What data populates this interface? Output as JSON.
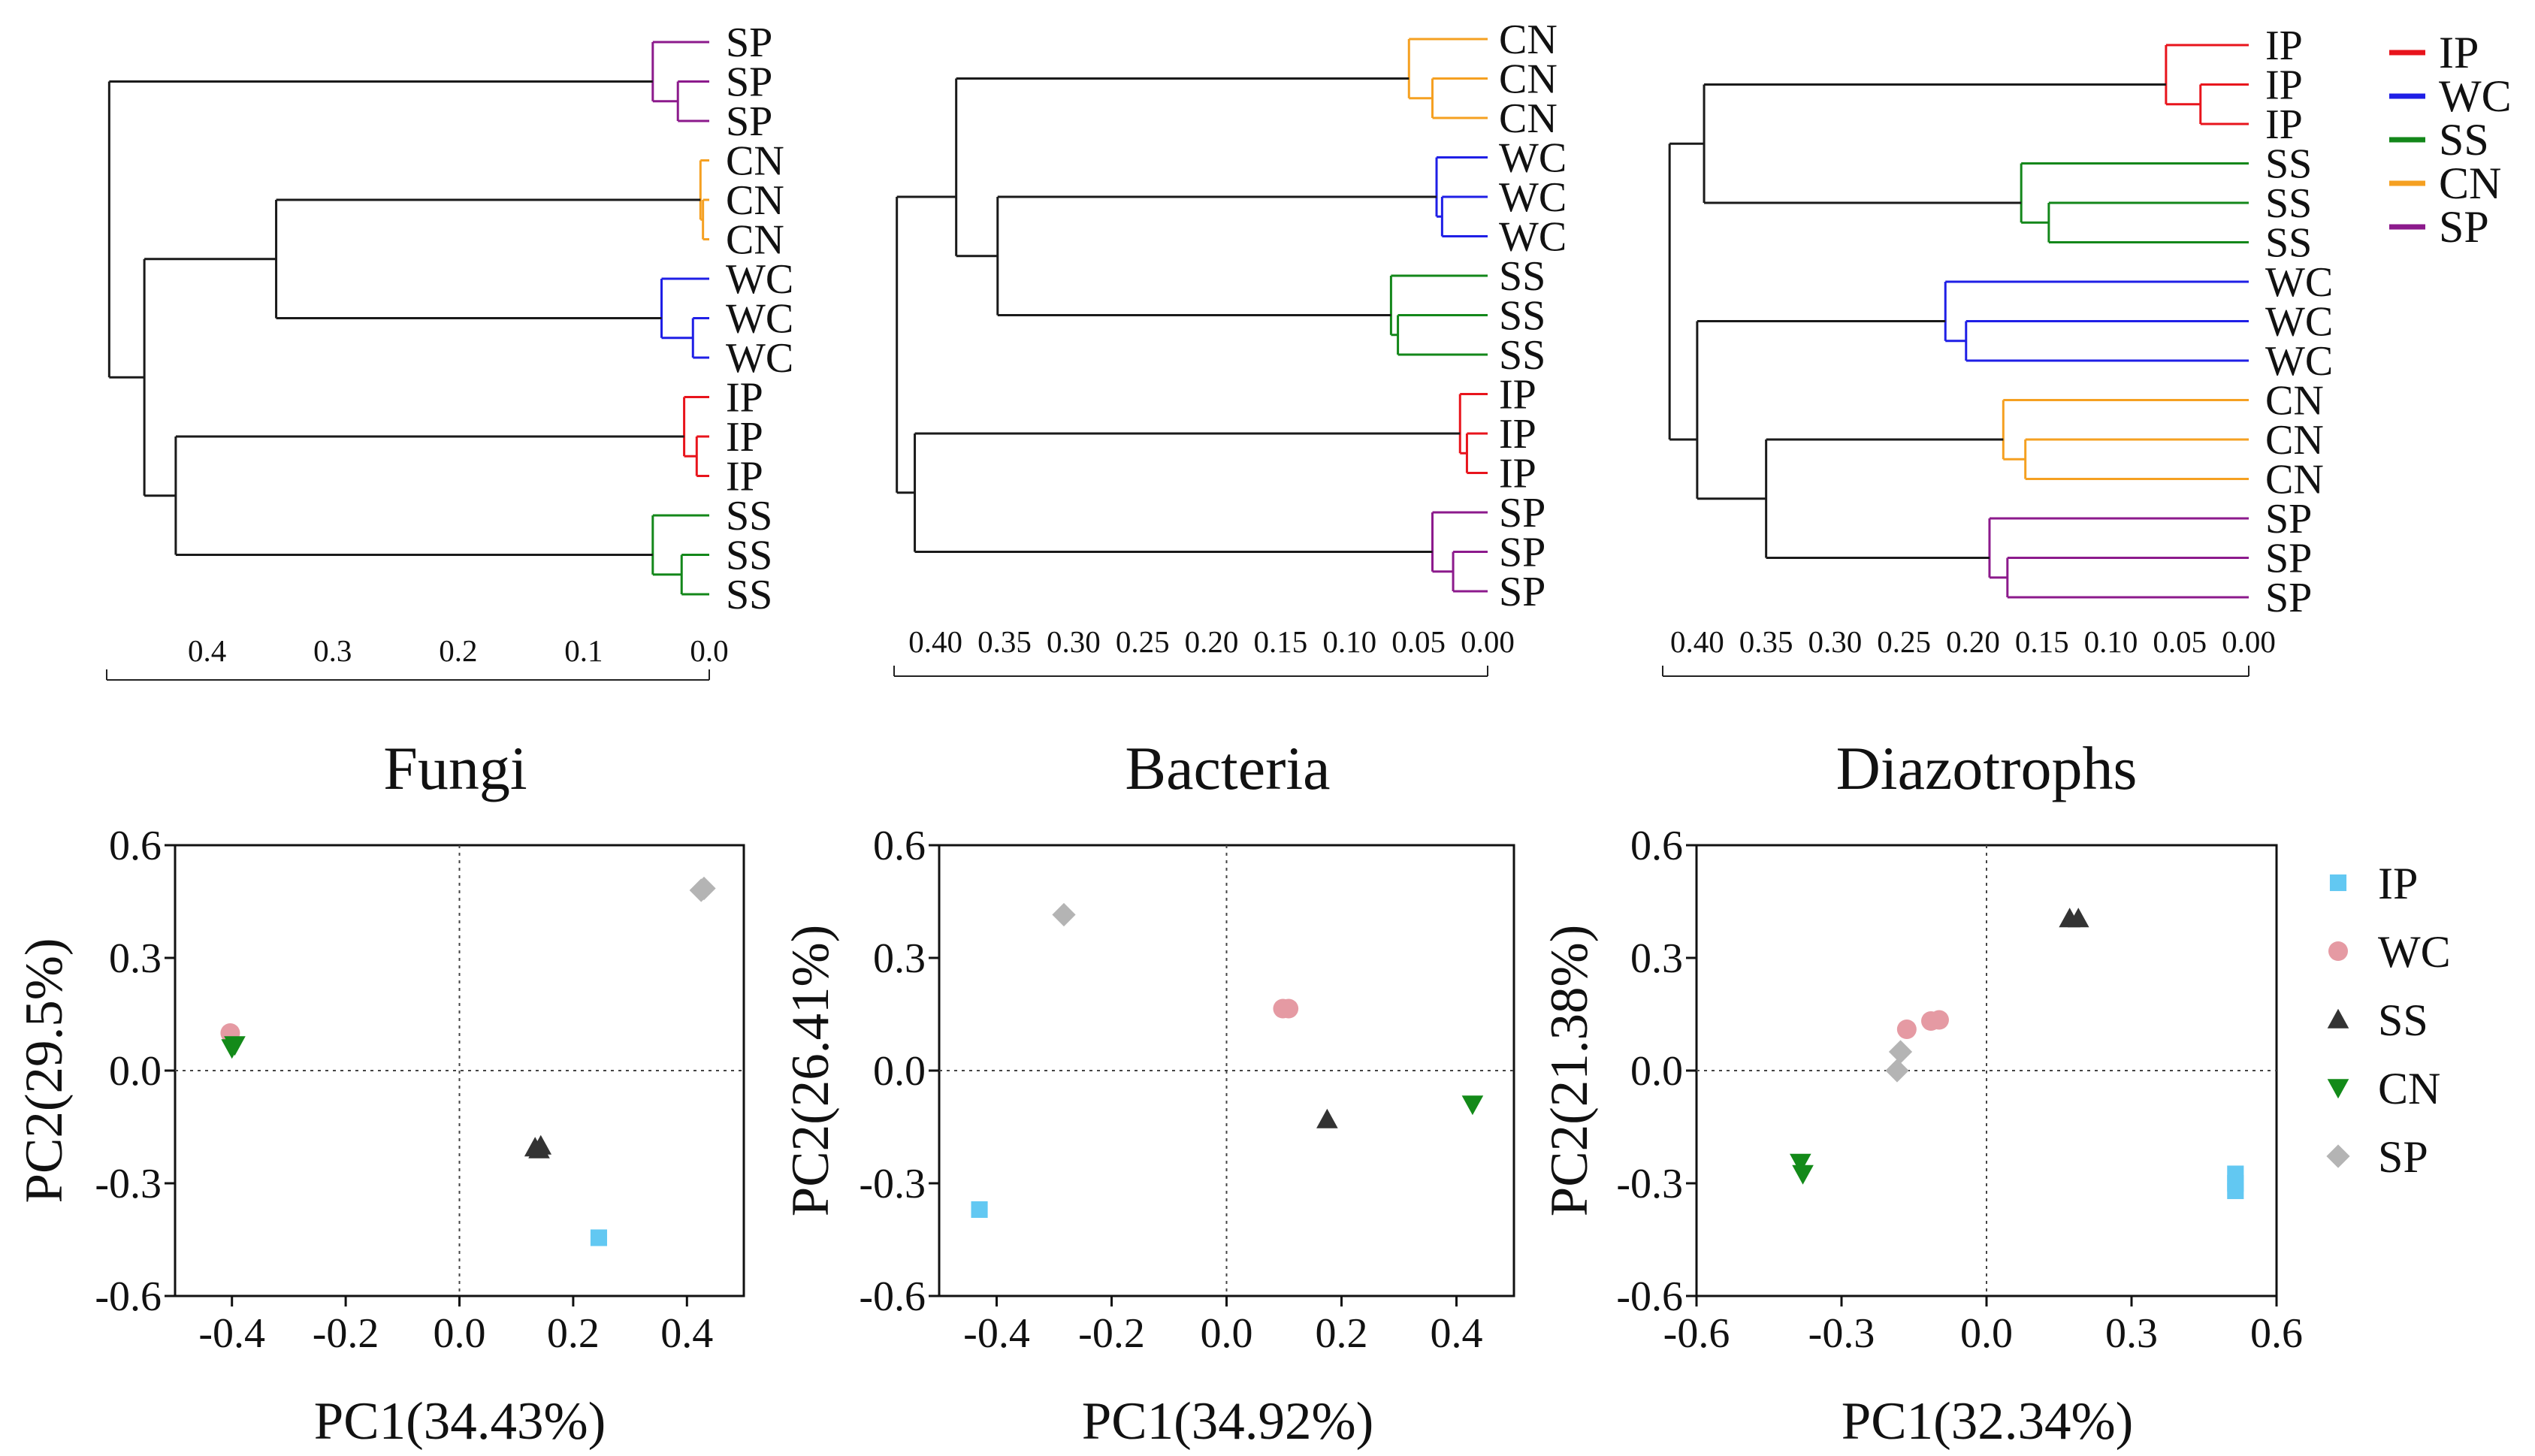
{
  "legend_colors": {
    "IP": "#e8141c",
    "WC": "#1f1fe6",
    "SS": "#13871a",
    "CN": "#f5a021",
    "SP": "#8c1a8c",
    "black": "#1a1a1a"
  },
  "scatter_style": {
    "IP": {
      "color": "#62c8f2",
      "marker": "square"
    },
    "WC": {
      "color": "#e59aa3",
      "marker": "circle"
    },
    "SS": {
      "color": "#333333",
      "marker": "triangle-up"
    },
    "CN": {
      "color": "#138a19",
      "marker": "triangle-down"
    },
    "SP": {
      "color": "#b4b4b4",
      "marker": "diamond"
    }
  },
  "dendrogram_legend": [
    "IP",
    "WC",
    "SS",
    "CN",
    "SP"
  ],
  "scatter_legend": [
    "IP",
    "WC",
    "SS",
    "CN",
    "SP"
  ],
  "chart_data": [
    {
      "type": "dendrogram",
      "panel": "Fungi",
      "axis_ticks": [
        "0.4",
        "0.3",
        "0.2",
        "0.1",
        "0.0"
      ],
      "tick_values": [
        0.4,
        0.3,
        0.2,
        0.1,
        0.0
      ],
      "xlim": [
        0.48,
        0.0
      ],
      "leaves": [
        "SP",
        "SP",
        "SP",
        "CN",
        "CN",
        "CN",
        "WC",
        "WC",
        "WC",
        "IP",
        "IP",
        "IP",
        "SS",
        "SS",
        "SS"
      ],
      "merges": [
        {
          "a": [
            1
          ],
          "b": [
            2
          ],
          "h": 0.025,
          "color": "SP"
        },
        {
          "a": [
            0
          ],
          "b": [
            1,
            2
          ],
          "h": 0.045,
          "color": "SP"
        },
        {
          "a": [
            4
          ],
          "b": [
            5
          ],
          "h": 0.005,
          "color": "CN"
        },
        {
          "a": [
            3
          ],
          "b": [
            4,
            5
          ],
          "h": 0.007,
          "color": "CN"
        },
        {
          "a": [
            7
          ],
          "b": [
            8
          ],
          "h": 0.013,
          "color": "WC"
        },
        {
          "a": [
            6
          ],
          "b": [
            7,
            8
          ],
          "h": 0.038,
          "color": "WC"
        },
        {
          "a": [
            10
          ],
          "b": [
            11
          ],
          "h": 0.01,
          "color": "IP"
        },
        {
          "a": [
            9
          ],
          "b": [
            10,
            11
          ],
          "h": 0.02,
          "color": "IP"
        },
        {
          "a": [
            13
          ],
          "b": [
            14
          ],
          "h": 0.022,
          "color": "SS"
        },
        {
          "a": [
            12
          ],
          "b": [
            13,
            14
          ],
          "h": 0.045,
          "color": "SS"
        },
        {
          "a": [
            3,
            4,
            5
          ],
          "b": [
            6,
            7,
            8
          ],
          "h": 0.345,
          "color": "black"
        },
        {
          "a": [
            9,
            10,
            11
          ],
          "b": [
            12,
            13,
            14
          ],
          "h": 0.425,
          "color": "black"
        },
        {
          "a": [
            3,
            4,
            5,
            6,
            7,
            8
          ],
          "b": [
            9,
            10,
            11,
            12,
            13,
            14
          ],
          "h": 0.45,
          "color": "black"
        },
        {
          "a": [
            0,
            1,
            2
          ],
          "b": [
            3,
            4,
            5,
            6,
            7,
            8,
            9,
            10,
            11,
            12,
            13,
            14
          ],
          "h": 0.478,
          "color": "black"
        }
      ]
    },
    {
      "type": "dendrogram",
      "panel": "Bacteria",
      "axis_ticks": [
        "0.40",
        "0.35",
        "0.30",
        "0.25",
        "0.20",
        "0.15",
        "0.10",
        "0.05",
        "0.00"
      ],
      "tick_values": [
        0.4,
        0.35,
        0.3,
        0.25,
        0.2,
        0.15,
        0.1,
        0.05,
        0.0
      ],
      "xlim": [
        0.43,
        0.0
      ],
      "leaves": [
        "CN",
        "CN",
        "CN",
        "WC",
        "WC",
        "WC",
        "SS",
        "SS",
        "SS",
        "IP",
        "IP",
        "IP",
        "SP",
        "SP",
        "SP"
      ],
      "merges": [
        {
          "a": [
            1
          ],
          "b": [
            2
          ],
          "h": 0.04,
          "color": "CN"
        },
        {
          "a": [
            0
          ],
          "b": [
            1,
            2
          ],
          "h": 0.057,
          "color": "CN"
        },
        {
          "a": [
            4
          ],
          "b": [
            5
          ],
          "h": 0.033,
          "color": "WC"
        },
        {
          "a": [
            3
          ],
          "b": [
            4,
            5
          ],
          "h": 0.037,
          "color": "WC"
        },
        {
          "a": [
            7
          ],
          "b": [
            8
          ],
          "h": 0.065,
          "color": "SS"
        },
        {
          "a": [
            6
          ],
          "b": [
            7,
            8
          ],
          "h": 0.07,
          "color": "SS"
        },
        {
          "a": [
            10
          ],
          "b": [
            11
          ],
          "h": 0.015,
          "color": "IP"
        },
        {
          "a": [
            9
          ],
          "b": [
            10,
            11
          ],
          "h": 0.02,
          "color": "IP"
        },
        {
          "a": [
            13
          ],
          "b": [
            14
          ],
          "h": 0.025,
          "color": "SP"
        },
        {
          "a": [
            12
          ],
          "b": [
            13,
            14
          ],
          "h": 0.04,
          "color": "SP"
        },
        {
          "a": [
            3,
            4,
            5
          ],
          "b": [
            6,
            7,
            8
          ],
          "h": 0.355,
          "color": "black"
        },
        {
          "a": [
            0,
            1,
            2
          ],
          "b": [
            3,
            4,
            5,
            6,
            7,
            8
          ],
          "h": 0.385,
          "color": "black"
        },
        {
          "a": [
            9,
            10,
            11
          ],
          "b": [
            12,
            13,
            14
          ],
          "h": 0.415,
          "color": "black"
        },
        {
          "a": [
            0,
            1,
            2,
            3,
            4,
            5,
            6,
            7,
            8
          ],
          "b": [
            9,
            10,
            11,
            12,
            13,
            14
          ],
          "h": 0.428,
          "color": "black"
        }
      ]
    },
    {
      "type": "dendrogram",
      "panel": "Diazotrophs",
      "axis_ticks": [
        "0.40",
        "0.35",
        "0.30",
        "0.25",
        "0.20",
        "0.15",
        "0.10",
        "0.05",
        "0.00"
      ],
      "tick_values": [
        0.4,
        0.35,
        0.3,
        0.25,
        0.2,
        0.15,
        0.1,
        0.05,
        0.0
      ],
      "xlim": [
        0.425,
        0.0
      ],
      "leaves": [
        "IP",
        "IP",
        "IP",
        "SS",
        "SS",
        "SS",
        "WC",
        "WC",
        "WC",
        "CN",
        "CN",
        "CN",
        "SP",
        "SP",
        "SP"
      ],
      "merges": [
        {
          "a": [
            1
          ],
          "b": [
            2
          ],
          "h": 0.035,
          "color": "IP"
        },
        {
          "a": [
            0
          ],
          "b": [
            1,
            2
          ],
          "h": 0.06,
          "color": "IP"
        },
        {
          "a": [
            4
          ],
          "b": [
            5
          ],
          "h": 0.145,
          "color": "SS"
        },
        {
          "a": [
            3
          ],
          "b": [
            4,
            5
          ],
          "h": 0.165,
          "color": "SS"
        },
        {
          "a": [
            7
          ],
          "b": [
            8
          ],
          "h": 0.205,
          "color": "WC"
        },
        {
          "a": [
            6
          ],
          "b": [
            7,
            8
          ],
          "h": 0.22,
          "color": "WC"
        },
        {
          "a": [
            10
          ],
          "b": [
            11
          ],
          "h": 0.162,
          "color": "CN"
        },
        {
          "a": [
            9
          ],
          "b": [
            10,
            11
          ],
          "h": 0.178,
          "color": "CN"
        },
        {
          "a": [
            13
          ],
          "b": [
            14
          ],
          "h": 0.175,
          "color": "SP"
        },
        {
          "a": [
            12
          ],
          "b": [
            13,
            14
          ],
          "h": 0.188,
          "color": "SP"
        },
        {
          "a": [
            0,
            1,
            2
          ],
          "b": [
            3,
            4,
            5
          ],
          "h": 0.395,
          "color": "black"
        },
        {
          "a": [
            9,
            10,
            11
          ],
          "b": [
            12,
            13,
            14
          ],
          "h": 0.35,
          "color": "black"
        },
        {
          "a": [
            6,
            7,
            8
          ],
          "b": [
            9,
            10,
            11,
            12,
            13,
            14
          ],
          "h": 0.4,
          "color": "black"
        },
        {
          "a": [
            0,
            1,
            2,
            3,
            4,
            5
          ],
          "b": [
            6,
            7,
            8,
            9,
            10,
            11,
            12,
            13,
            14
          ],
          "h": 0.42,
          "color": "black"
        }
      ]
    },
    {
      "type": "scatter",
      "title": "Fungi",
      "xlabel": "PC1(34.43%)",
      "ylabel": "PC2(29.5%)",
      "xlim": [
        -0.5,
        0.5
      ],
      "ylim": [
        -0.6,
        0.6
      ],
      "xticks": [
        -0.4,
        -0.2,
        0.0,
        0.2,
        0.4
      ],
      "xtick_labels": [
        "-0.4",
        "-0.2",
        "0.0",
        "0.2",
        "0.4"
      ],
      "yticks": [
        -0.6,
        -0.3,
        0.0,
        0.3,
        0.6
      ],
      "ytick_labels": [
        "-0.6",
        "-0.3",
        "0.0",
        "0.3",
        "0.6"
      ],
      "series": [
        {
          "name": "IP",
          "points": [
            [
              0.245,
              -0.445
            ]
          ]
        },
        {
          "name": "WC",
          "points": [
            [
              -0.403,
              0.1
            ]
          ]
        },
        {
          "name": "SS",
          "points": [
            [
              0.133,
              -0.205
            ],
            [
              0.143,
              -0.2
            ],
            [
              0.14,
              -0.21
            ]
          ]
        },
        {
          "name": "CN",
          "points": [
            [
              -0.4,
              0.06
            ],
            [
              -0.395,
              0.068
            ]
          ]
        },
        {
          "name": "SP",
          "points": [
            [
              0.425,
              0.48
            ],
            [
              0.43,
              0.485
            ]
          ]
        }
      ]
    },
    {
      "type": "scatter",
      "title": "Bacteria",
      "xlabel": "PC1(34.92%)",
      "ylabel": "PC2(26.41%)",
      "xlim": [
        -0.5,
        0.5
      ],
      "ylim": [
        -0.6,
        0.6
      ],
      "xticks": [
        -0.4,
        -0.2,
        0.0,
        0.2,
        0.4
      ],
      "xtick_labels": [
        "-0.4",
        "-0.2",
        "0.0",
        "0.2",
        "0.4"
      ],
      "yticks": [
        -0.6,
        -0.3,
        0.0,
        0.3,
        0.6
      ],
      "ytick_labels": [
        "-0.6",
        "-0.3",
        "0.0",
        "0.3",
        "0.6"
      ],
      "series": [
        {
          "name": "IP",
          "points": [
            [
              -0.43,
              -0.37
            ]
          ]
        },
        {
          "name": "WC",
          "points": [
            [
              0.098,
              0.165
            ],
            [
              0.108,
              0.165
            ]
          ]
        },
        {
          "name": "SS",
          "points": [
            [
              0.175,
              -0.13
            ]
          ]
        },
        {
          "name": "CN",
          "points": [
            [
              0.428,
              -0.09
            ]
          ]
        },
        {
          "name": "SP",
          "points": [
            [
              -0.283,
              0.415
            ]
          ]
        }
      ]
    },
    {
      "type": "scatter",
      "title": "Diazotrophs",
      "xlabel": "PC1(32.34%)",
      "ylabel": "PC2(21.38%)",
      "xlim": [
        -0.6,
        0.6
      ],
      "ylim": [
        -0.6,
        0.6
      ],
      "xticks": [
        -0.6,
        -0.3,
        0.0,
        0.3,
        0.6
      ],
      "xtick_labels": [
        "-0.6",
        "-0.3",
        "0.0",
        "0.3",
        "0.6"
      ],
      "yticks": [
        -0.6,
        -0.3,
        0.0,
        0.3,
        0.6
      ],
      "ytick_labels": [
        "-0.6",
        "-0.3",
        "0.0",
        "0.3",
        "0.6"
      ],
      "series": [
        {
          "name": "IP",
          "points": [
            [
              0.515,
              -0.275
            ],
            [
              0.515,
              -0.3
            ],
            [
              0.515,
              -0.32
            ]
          ]
        },
        {
          "name": "WC",
          "points": [
            [
              -0.165,
              0.11
            ],
            [
              -0.115,
              0.132
            ],
            [
              -0.098,
              0.135
            ]
          ]
        },
        {
          "name": "SS",
          "points": [
            [
              0.172,
              0.405
            ],
            [
              0.19,
              0.405
            ]
          ]
        },
        {
          "name": "CN",
          "points": [
            [
              -0.385,
              -0.245
            ],
            [
              -0.38,
              -0.275
            ]
          ]
        },
        {
          "name": "SP",
          "points": [
            [
              -0.185,
              0.0
            ],
            [
              -0.178,
              0.05
            ]
          ]
        }
      ]
    }
  ]
}
